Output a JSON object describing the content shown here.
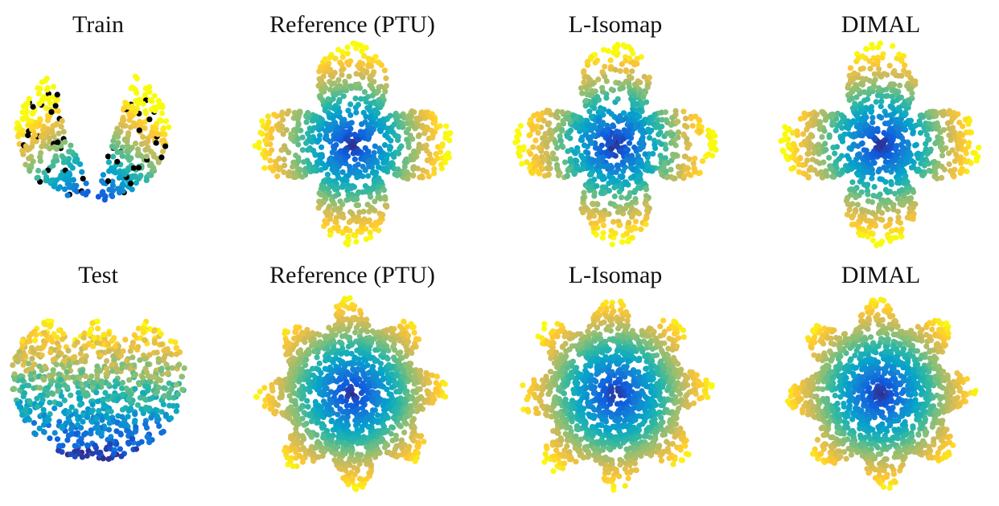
{
  "rows": [
    [
      "Train",
      "Reference (PTU)",
      "L-Isomap",
      "DIMAL"
    ],
    [
      "Test",
      "Reference (PTU)",
      "L-Isomap",
      "DIMAL"
    ]
  ]
}
